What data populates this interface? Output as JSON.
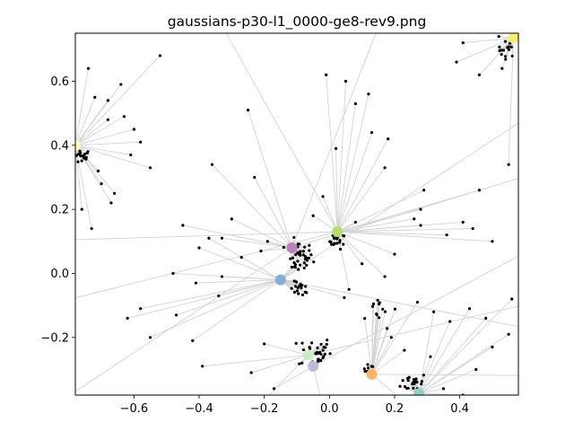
{
  "chart_data": {
    "type": "scatter",
    "title": "gaussians-p30-l1_0000-ge8-rev9.png",
    "xlabel": "",
    "ylabel": "",
    "xlim": [
      -0.78,
      0.58
    ],
    "ylim": [
      -0.38,
      0.75
    ],
    "x_ticks": [
      -0.6,
      -0.4,
      -0.2,
      0.0,
      0.2,
      0.4
    ],
    "x_tick_labels": [
      "−0.6",
      "−0.4",
      "−0.2",
      "0.0",
      "0.2",
      "0.4"
    ],
    "y_ticks": [
      -0.2,
      0.0,
      0.2,
      0.4,
      0.6
    ],
    "y_tick_labels": [
      "−0.2",
      "0.0",
      "0.2",
      "0.4",
      "0.6"
    ],
    "grid": false,
    "legend": "none",
    "edge_color": "#d3d3d3",
    "point_color": "#000000",
    "centers": [
      {
        "x": -0.78,
        "y": 0.4,
        "color": "#ffffb3"
      },
      {
        "x": 0.565,
        "y": 0.735,
        "color": "#ffed6f"
      },
      {
        "x": 0.025,
        "y": 0.13,
        "color": "#b3de69"
      },
      {
        "x": -0.115,
        "y": 0.08,
        "color": "#bc80bd"
      },
      {
        "x": -0.15,
        "y": -0.02,
        "color": "#80b1d3"
      },
      {
        "x": -0.065,
        "y": -0.255,
        "color": "#ccebc5"
      },
      {
        "x": -0.05,
        "y": -0.29,
        "color": "#bebada"
      },
      {
        "x": 0.13,
        "y": -0.315,
        "color": "#fdb462"
      },
      {
        "x": 0.275,
        "y": -0.375,
        "color": "#8dd3c7"
      }
    ],
    "clusters": [
      {
        "cx": -0.76,
        "cy": 0.365,
        "sx": 0.015,
        "sy": 0.012,
        "n": 18
      },
      {
        "cx": 0.545,
        "cy": 0.7,
        "sx": 0.014,
        "sy": 0.012,
        "n": 14
      },
      {
        "cx": 0.025,
        "cy": 0.1,
        "sx": 0.012,
        "sy": 0.012,
        "n": 18
      },
      {
        "cx": -0.095,
        "cy": 0.05,
        "sx": 0.022,
        "sy": 0.025,
        "n": 40
      },
      {
        "cx": -0.09,
        "cy": -0.05,
        "sx": 0.015,
        "sy": 0.012,
        "n": 16
      },
      {
        "cx": -0.045,
        "cy": -0.245,
        "sx": 0.025,
        "sy": 0.025,
        "n": 32
      },
      {
        "cx": 0.12,
        "cy": -0.295,
        "sx": 0.012,
        "sy": 0.01,
        "n": 8
      },
      {
        "cx": 0.26,
        "cy": -0.34,
        "sx": 0.02,
        "sy": 0.015,
        "n": 22
      },
      {
        "cx": 0.15,
        "cy": -0.11,
        "sx": 0.03,
        "sy": 0.03,
        "n": 14
      }
    ],
    "outliers": [
      [
        -0.74,
        0.64
      ],
      [
        -0.72,
        0.55
      ],
      [
        -0.68,
        0.54
      ],
      [
        -0.68,
        0.48
      ],
      [
        -0.64,
        0.59
      ],
      [
        -0.63,
        0.49
      ],
      [
        -0.71,
        0.32
      ],
      [
        -0.7,
        0.28
      ],
      [
        -0.66,
        0.25
      ],
      [
        -0.61,
        0.37
      ],
      [
        -0.58,
        0.41
      ],
      [
        -0.55,
        0.33
      ],
      [
        -0.52,
        0.68
      ],
      [
        -0.6,
        0.45
      ],
      [
        -0.73,
        0.14
      ],
      [
        -0.76,
        0.2
      ],
      [
        -0.67,
        0.22
      ],
      [
        -0.36,
        0.34
      ],
      [
        -0.25,
        0.51
      ],
      [
        -0.23,
        0.3
      ],
      [
        -0.3,
        0.17
      ],
      [
        -0.33,
        0.11
      ],
      [
        -0.21,
        0.07
      ],
      [
        -0.19,
        0.1
      ],
      [
        -0.27,
        0.05
      ],
      [
        -0.33,
        -0.01
      ],
      [
        -0.37,
        0.11
      ],
      [
        -0.4,
        0.08
      ],
      [
        -0.48,
        0.0
      ],
      [
        -0.41,
        -0.03
      ],
      [
        -0.34,
        -0.07
      ],
      [
        -0.47,
        -0.13
      ],
      [
        -0.58,
        -0.11
      ],
      [
        -0.62,
        -0.14
      ],
      [
        -0.55,
        -0.2
      ],
      [
        -0.42,
        -0.21
      ],
      [
        -0.39,
        -0.29
      ],
      [
        -0.2,
        -0.22
      ],
      [
        -0.24,
        -0.31
      ],
      [
        -0.17,
        -0.36
      ],
      [
        0.02,
        0.39
      ],
      [
        0.05,
        0.6
      ],
      [
        0.08,
        0.53
      ],
      [
        0.12,
        0.56
      ],
      [
        -0.01,
        0.62
      ],
      [
        0.13,
        0.44
      ],
      [
        0.17,
        0.33
      ],
      [
        0.29,
        0.26
      ],
      [
        0.28,
        0.2
      ],
      [
        0.28,
        0.15
      ],
      [
        0.36,
        0.12
      ],
      [
        0.41,
        0.16
      ],
      [
        0.44,
        0.14
      ],
      [
        0.46,
        0.26
      ],
      [
        0.5,
        0.1
      ],
      [
        0.55,
        0.34
      ],
      [
        0.39,
        0.66
      ],
      [
        0.41,
        0.72
      ],
      [
        0.46,
        0.62
      ],
      [
        0.52,
        0.74
      ],
      [
        0.53,
        0.64
      ],
      [
        0.18,
        0.42
      ],
      [
        0.27,
        -0.09
      ],
      [
        0.32,
        -0.12
      ],
      [
        0.37,
        -0.15
      ],
      [
        0.43,
        -0.11
      ],
      [
        0.48,
        -0.14
      ],
      [
        0.56,
        -0.08
      ],
      [
        0.5,
        -0.23
      ],
      [
        0.45,
        -0.3
      ],
      [
        0.41,
        -0.38
      ],
      [
        0.35,
        -0.36
      ],
      [
        0.19,
        -0.2
      ],
      [
        0.23,
        -0.24
      ],
      [
        0.31,
        -0.26
      ],
      [
        0.08,
        0.16
      ],
      [
        0.1,
        0.03
      ],
      [
        0.06,
        -0.05
      ],
      [
        0.17,
        -0.01
      ],
      [
        0.2,
        0.06
      ],
      [
        -0.02,
        0.24
      ],
      [
        -0.05,
        0.18
      ],
      [
        0.26,
        0.17
      ],
      [
        -0.45,
        0.15
      ],
      [
        0.55,
        -0.19
      ]
    ]
  }
}
